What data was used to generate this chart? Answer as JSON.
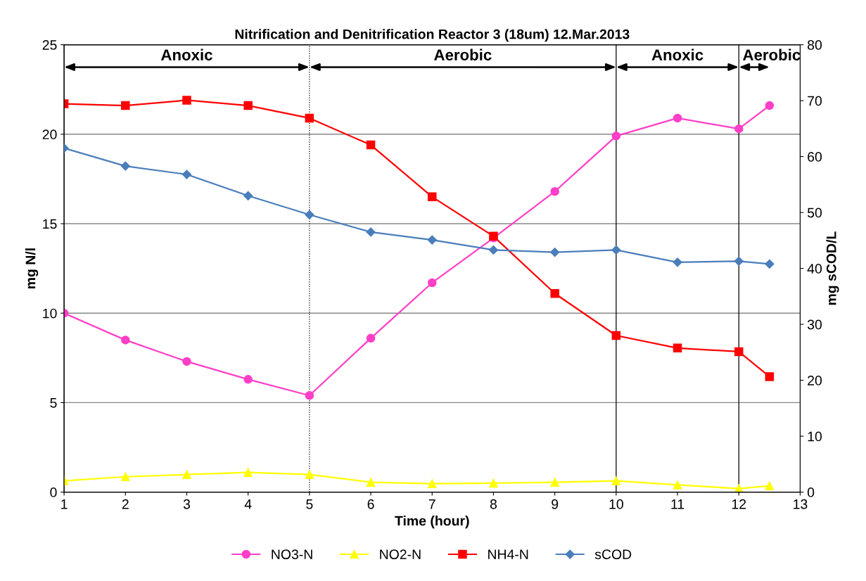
{
  "chart_data": {
    "type": "line",
    "title": "Nitrification and Denitrification Reactor 3 (18um) 12.Mar.2013",
    "xlabel": "Time (hour)",
    "ylabel": "mg N/l",
    "y2label": "mg sCOD/L",
    "x": [
      1,
      2,
      3,
      4,
      5,
      6,
      7,
      8,
      9,
      10,
      11,
      12,
      12.5
    ],
    "series": [
      {
        "name": "NO3-N",
        "color": "#ff3fc8",
        "marker": "circle",
        "values": [
          10,
          8.5,
          7.3,
          6.3,
          5.4,
          8.6,
          11.7,
          14.2,
          16.8,
          19.9,
          20.9,
          20.3,
          21.6
        ]
      },
      {
        "name": "NO2-N",
        "color": "#ffff00",
        "marker": "triangle",
        "values": [
          0.63,
          0.86,
          0.98,
          1.1,
          0.98,
          0.55,
          0.47,
          0.5,
          0.55,
          0.63,
          0.4,
          0.2,
          0.35
        ]
      },
      {
        "name": "NH4-N",
        "color": "#ff0000",
        "marker": "square",
        "values": [
          21.7,
          21.6,
          21.9,
          21.6,
          20.9,
          19.4,
          16.5,
          14.3,
          11.1,
          8.75,
          8.05,
          7.85,
          6.45
        ]
      },
      {
        "name": "sCOD",
        "color": "#4a7ebb",
        "marker": "diamond",
        "axis": "y2",
        "values": [
          61.5,
          58.3,
          56.8,
          53.0,
          49.6,
          46.5,
          45.1,
          43.3,
          42.9,
          43.3,
          41.1,
          41.3,
          40.8
        ]
      }
    ],
    "xlim": [
      1,
      13
    ],
    "xticks": [
      1,
      2,
      3,
      4,
      5,
      6,
      7,
      8,
      9,
      10,
      11,
      12,
      13
    ],
    "ylim": [
      0,
      25
    ],
    "yticks": [
      0,
      5,
      10,
      15,
      20,
      25
    ],
    "y2lim": [
      0,
      80
    ],
    "y2ticks": [
      0,
      10,
      20,
      30,
      40,
      50,
      60,
      70,
      80
    ],
    "ref_lines": [
      {
        "axis": "x",
        "value": 5,
        "line_style": "dotted",
        "color": "#000000"
      },
      {
        "axis": "x",
        "value": 10,
        "line_style": "solid",
        "color": "#000000"
      },
      {
        "axis": "x",
        "value": 12,
        "line_style": "solid",
        "color": "#000000"
      }
    ],
    "annotations": [
      "Anoxic",
      "Aerobic",
      "Anoxic",
      "Aerobic"
    ],
    "grid": "y",
    "legend": "bottom",
    "line_style": "solid"
  }
}
